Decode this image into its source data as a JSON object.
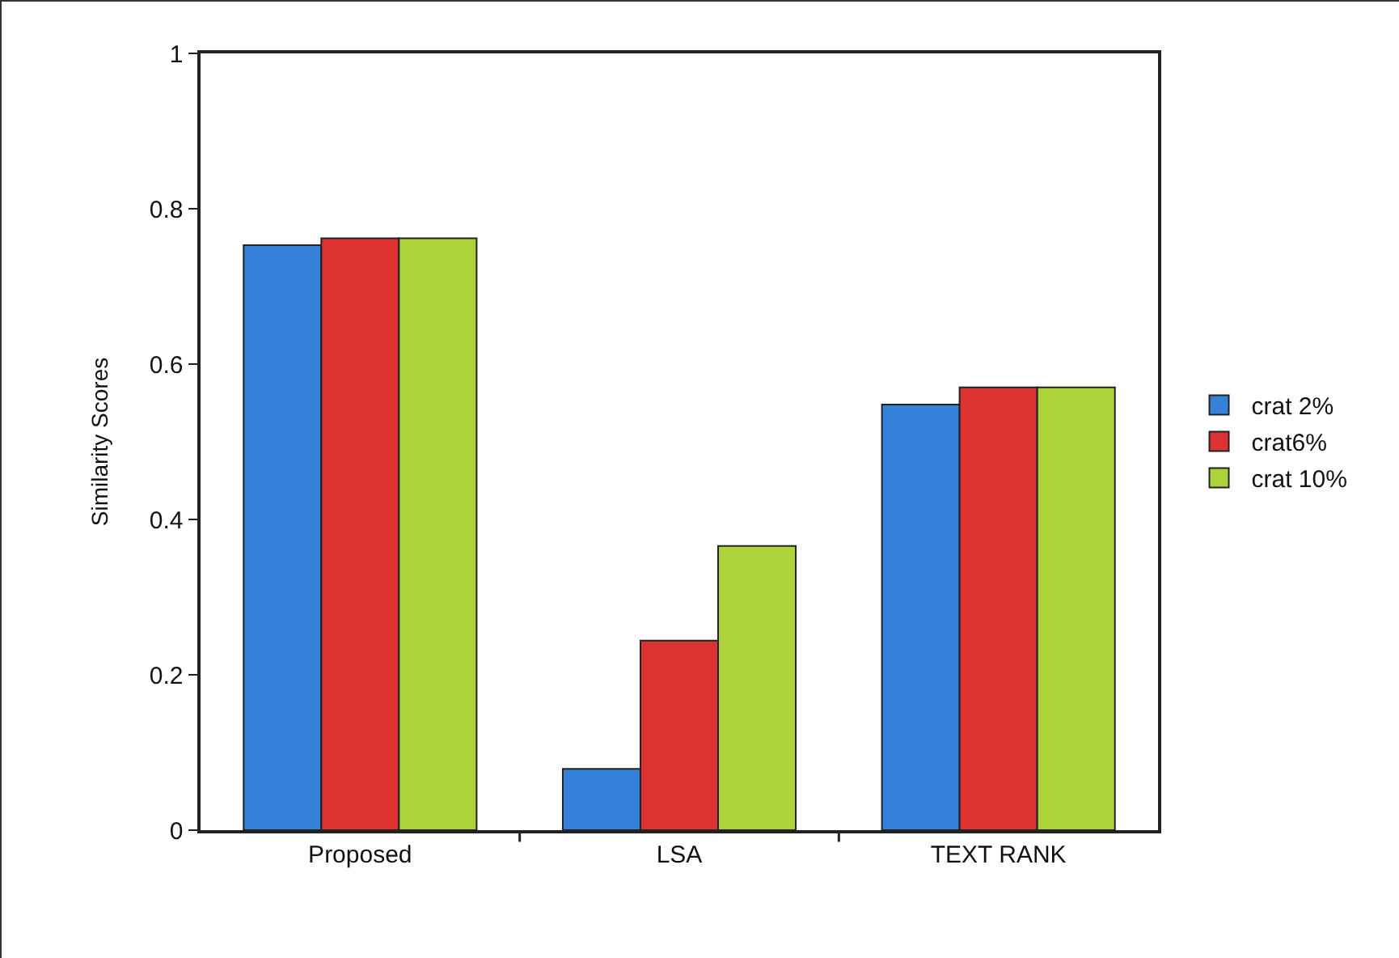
{
  "chart_data": {
    "type": "bar",
    "ylabel": "Similarity Scores",
    "categories": [
      "Proposed",
      "LSA",
      "TEXT RANK"
    ],
    "series": [
      {
        "name": "crat 2%",
        "color": "#3580d8",
        "values": [
          0.753,
          0.079,
          0.548
        ]
      },
      {
        "name": "crat6%",
        "color": "#dc3232",
        "values": [
          0.762,
          0.244,
          0.57
        ]
      },
      {
        "name": "crat 10%",
        "color": "#acd43a",
        "values": [
          0.762,
          0.366,
          0.57
        ]
      }
    ],
    "ylim": [
      0,
      1
    ],
    "yticks": [
      0,
      0.2,
      0.4,
      0.6,
      0.8,
      1
    ],
    "grid": false,
    "legend": "right"
  }
}
